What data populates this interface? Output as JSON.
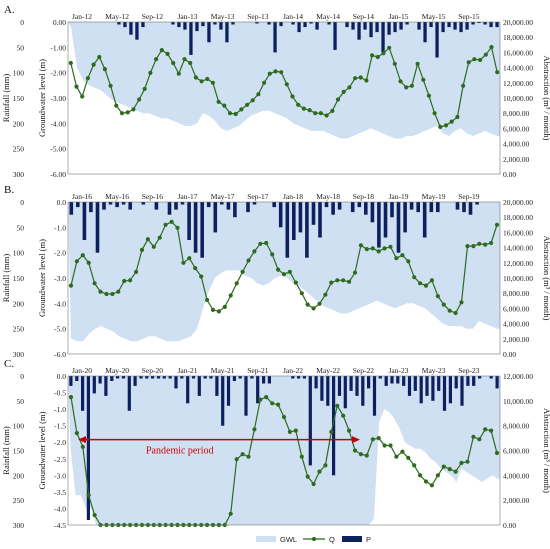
{
  "chart_data": [
    {
      "panel_label": "A.",
      "type": "bar+line+area",
      "x_ticks": [
        "Jan-12",
        "May-12",
        "Sep-12",
        "Jan-13",
        "May-13",
        "Sep-13",
        "Jan-14",
        "May-14",
        "Sep-14",
        "Jan-15",
        "May-15",
        "Sep-15"
      ],
      "ylabel_rainfall": "Rainfall (mm)",
      "ylabel_gwl": "Groundwater level (m)",
      "ylabel_abstraction": "Abstraction (m³ / month)",
      "rainfall_ticks": [
        "0",
        "50",
        "100",
        "150",
        "200",
        "250",
        "300"
      ],
      "gwl_ticks": [
        "0.00",
        "-1.00",
        "-2.00",
        "-3.00",
        "-4.00",
        "-5.00",
        "-6.00"
      ],
      "abstraction_ticks": [
        "0.00",
        "2,000.00",
        "4,000.00",
        "6,000.00",
        "8,000.00",
        "10,000.00",
        "12,000.00",
        "14,000.00",
        "16,000.00",
        "18,000.00",
        "20,000.00"
      ],
      "rainfall_max": 300,
      "gwl_min": -6,
      "abstraction_max": 20000,
      "P": [
        0,
        0,
        0,
        0,
        0,
        0,
        0,
        0,
        5,
        10,
        25,
        35,
        10,
        0,
        0,
        0,
        0,
        5,
        10,
        15,
        65,
        18,
        8,
        40,
        5,
        15,
        40,
        5,
        0,
        0,
        0,
        3,
        0,
        5,
        60,
        8,
        0,
        5,
        20,
        10,
        3,
        15,
        0,
        5,
        55,
        0,
        10,
        15,
        35,
        15,
        30,
        20,
        60,
        25,
        20,
        15,
        5,
        0,
        15,
        40,
        10,
        70,
        20,
        10,
        15,
        20,
        15,
        5,
        2,
        5,
        10,
        10
      ],
      "GWL": [
        -0.2,
        -1.8,
        -2.3,
        -2.5,
        -2.6,
        -2.7,
        -2.9,
        -3.1,
        -3.2,
        -3.3,
        -3.4,
        -3.5,
        -3.6,
        -3.6,
        -3.7,
        -3.8,
        -3.8,
        -3.9,
        -4.0,
        -4.1,
        -4.1,
        -4.0,
        -3.6,
        -3.7,
        -3.9,
        -4.2,
        -4.3,
        -4.2,
        -4.1,
        -3.9,
        -3.7,
        -3.6,
        -3.5,
        -3.5,
        -3.6,
        -3.7,
        -3.8,
        -4.0,
        -4.1,
        -4.2,
        -4.3,
        -4.3,
        -4.3,
        -4.4,
        -4.5,
        -4.6,
        -4.6,
        -4.5,
        -4.4,
        -4.3,
        -4.2,
        -4.3,
        -4.4,
        -4.5,
        -4.6,
        -4.6,
        -4.5,
        -4.5,
        -4.4,
        -4.3,
        -4.2,
        -4.1,
        -4.4,
        -4.5,
        -4.3,
        -4.2,
        -4.4,
        -4.5,
        -4.4,
        -4.3,
        -4.4,
        -4.5
      ],
      "Q": [
        14600,
        11500,
        10200,
        12600,
        14400,
        15400,
        13800,
        11600,
        9000,
        8000,
        8100,
        8500,
        9800,
        11200,
        13300,
        15100,
        16300,
        15800,
        14600,
        13200,
        15100,
        14600,
        12700,
        12200,
        12500,
        12000,
        9500,
        9000,
        8000,
        7900,
        8500,
        9100,
        9700,
        10500,
        12000,
        13200,
        13500,
        13400,
        11800,
        10200,
        9100,
        8600,
        8400,
        8000,
        8000,
        7700,
        8300,
        9800,
        10800,
        11400,
        12600,
        12700,
        12300,
        15600,
        15400,
        15900,
        16600,
        14500,
        12200,
        11400,
        11600,
        14500,
        12400,
        10300,
        8000,
        6200,
        6400,
        6900,
        7500,
        11600,
        14700,
        15100,
        15000,
        15700,
        16700,
        13400
      ]
    },
    {
      "panel_label": "B.",
      "type": "bar+line+area",
      "x_ticks": [
        "Jan-16",
        "May-16",
        "Sep-16",
        "Jan-17",
        "May-17",
        "Sep-17",
        "Jan-18",
        "May-18",
        "Sep-18",
        "Jan-19",
        "May-19",
        "Sep-19"
      ],
      "ylabel_rainfall": "Rainfall (mm)",
      "ylabel_gwl": "Groundwater level (m)",
      "ylabel_abstraction": "Abstraction (m³ / month)",
      "rainfall_ticks": [
        "0",
        "50",
        "100",
        "150",
        "200",
        "250",
        "300"
      ],
      "gwl_ticks": [
        "0.0",
        "-1.0",
        "-2.0",
        "-3.0",
        "-4.0",
        "-5.0",
        "-6.0"
      ],
      "abstraction_ticks": [
        "0.00",
        "2,000.00",
        "4,000.00",
        "6,000.00",
        "8,000.00",
        "10,000.00",
        "12,000.00",
        "14,000.00",
        "16,000.00",
        "18,000.00",
        "20,000.00"
      ],
      "rainfall_max": 300,
      "gwl_min": -6,
      "abstraction_max": 20000,
      "P": [
        25,
        10,
        75,
        20,
        100,
        15,
        5,
        10,
        5,
        15,
        0,
        5,
        0,
        15,
        0,
        25,
        15,
        5,
        75,
        100,
        110,
        10,
        60,
        5,
        15,
        30,
        0,
        20,
        5,
        0,
        0,
        10,
        50,
        110,
        75,
        60,
        110,
        45,
        70,
        10,
        25,
        15,
        0,
        20,
        10,
        25,
        40,
        90,
        70,
        30,
        100,
        60,
        15,
        20,
        70,
        20,
        20,
        0,
        0,
        15,
        20,
        25,
        5,
        0,
        0,
        0
      ],
      "GWL": [
        -5.4,
        -5.5,
        -5.5,
        -5.2,
        -5.0,
        -4.9,
        -5.0,
        -5.1,
        -5.3,
        -5.4,
        -5.5,
        -5.5,
        -5.4,
        -5.3,
        -5.3,
        -5.4,
        -5.5,
        -5.5,
        -5.5,
        -5.4,
        -5.3,
        -5.0,
        -4.2,
        -3.5,
        -3.0,
        -2.8,
        -2.7,
        -2.7,
        -2.7,
        -2.9,
        -3.0,
        -3.2,
        -3.3,
        -3.2,
        -3.0,
        -2.9,
        -3.0,
        -3.2,
        -3.3,
        -3.5,
        -3.7,
        -3.9,
        -4.1,
        -4.2,
        -4.3,
        -4.4,
        -4.4,
        -4.3,
        -4.2,
        -4.1,
        -4.0,
        -3.9,
        -4.0,
        -4.1,
        -4.2,
        -4.1,
        -4.0,
        -4.0,
        -4.1,
        -4.2,
        -4.4,
        -4.6,
        -4.8,
        -4.9,
        -4.9,
        -4.9,
        -5.0,
        -5.0,
        -4.7,
        -4.8,
        -4.9,
        -5.0
      ],
      "Q": [
        9000,
        12200,
        13000,
        12000,
        9300,
        8200,
        7900,
        7900,
        8200,
        9600,
        9700,
        10800,
        13700,
        15100,
        14100,
        15300,
        17000,
        17400,
        16600,
        12000,
        12600,
        11300,
        10200,
        7100,
        5800,
        5600,
        6200,
        7700,
        9300,
        10800,
        12300,
        13500,
        14500,
        14600,
        13100,
        11100,
        10500,
        10800,
        9400,
        8000,
        6500,
        6000,
        6600,
        7800,
        9400,
        9700,
        9700,
        9500,
        10700,
        14300,
        13800,
        13900,
        13500,
        13900,
        14100,
        12600,
        13000,
        12200,
        10100,
        9300,
        9000,
        9700,
        7600,
        6500,
        5700,
        5400,
        6800,
        14200,
        14200,
        14500,
        14400,
        14600,
        17000
      ]
    },
    {
      "panel_label": "C.",
      "type": "bar+line+area",
      "annotation": "Pandemic period",
      "x_ticks": [
        "Jan-20",
        "May-20",
        "Sep-20",
        "Jan-21",
        "May-21",
        "Sep-21",
        "Jan-22",
        "May-22",
        "Sep-22",
        "Jan-23",
        "May-23",
        "Sep-23"
      ],
      "ylabel_rainfall": "Rainfall (mm)",
      "ylabel_gwl": "Groundwater level (m)",
      "ylabel_abstraction": "Abstraction (m³ / month)",
      "rainfall_ticks": [
        "0",
        "50",
        "100",
        "150",
        "200",
        "250",
        "300"
      ],
      "gwl_ticks": [
        "0.0",
        "-0.5",
        "-1.0",
        "-1.5",
        "-2.0",
        "-2.5",
        "-3.0",
        "-3.5",
        "-4.0",
        "-4.5"
      ],
      "abstraction_ticks": [
        "0.00",
        "2,000.00",
        "4,000.00",
        "6,000.00",
        "8,000.00",
        "10,000.00",
        "12,000.00"
      ],
      "rainfall_max": 300,
      "gwl_min": -4.5,
      "abstraction_max": 12000,
      "P": [
        20,
        10,
        70,
        290,
        35,
        15,
        40,
        10,
        5,
        5,
        70,
        20,
        5,
        5,
        5,
        5,
        5,
        5,
        25,
        5,
        55,
        5,
        40,
        5,
        5,
        40,
        100,
        60,
        10,
        5,
        80,
        5,
        55,
        15,
        15,
        0,
        0,
        0,
        5,
        5,
        5,
        180,
        25,
        50,
        60,
        200,
        40,
        65,
        30,
        40,
        60,
        25,
        80,
        5,
        20,
        15,
        15,
        20,
        40,
        30,
        55,
        40,
        50,
        30,
        70,
        55,
        25,
        60,
        20,
        20,
        5,
        0,
        5,
        25
      ],
      "GWL": [
        -2.2,
        -3.6,
        -3.6,
        -4.0,
        -4.0,
        -4.5,
        -4.5,
        -4.5,
        -4.5,
        -4.5,
        -4.5,
        -4.5,
        -4.5,
        -4.5,
        -4.5,
        -4.5,
        -4.5,
        -4.5,
        -4.5,
        -4.5,
        -4.5,
        -4.5,
        -4.5,
        -4.5,
        -4.5,
        -4.5,
        -4.5,
        -4.5,
        -4.5,
        -4.5,
        -4.5,
        -4.5,
        -4.5,
        -4.5,
        -4.5,
        -4.5,
        -4.5,
        -4.5,
        -4.5,
        -4.5,
        -4.5,
        -4.5,
        -4.5,
        -4.5,
        -4.5,
        -4.5,
        -4.5,
        -4.5,
        -4.5,
        -4.5,
        -4.5,
        -4.5,
        -4.5,
        -4.5,
        -4.5,
        -4.5,
        -4.5,
        -4.5,
        -4.5,
        -4.3,
        -1.4,
        -1.0,
        -1.1,
        -1.3,
        -1.6,
        -2.0,
        -2.1,
        -2.2,
        -2.2,
        -2.3,
        -2.5,
        -2.6,
        -2.8,
        -2.9,
        -3.0,
        -3.2,
        -2.8,
        -2.9,
        -3.0,
        -3.1,
        -3.2,
        -3.1,
        -3.0,
        -3.1
      ],
      "Q": [
        10300,
        7400,
        6300,
        2400,
        800,
        0,
        0,
        0,
        0,
        0,
        0,
        0,
        0,
        0,
        0,
        0,
        0,
        0,
        0,
        0,
        0,
        0,
        0,
        0,
        0,
        0,
        0,
        900,
        5300,
        5700,
        5500,
        7700,
        10100,
        10300,
        9800,
        9700,
        8700,
        7500,
        7600,
        5500,
        3900,
        3300,
        4300,
        4800,
        7500,
        9600,
        8800,
        7600,
        6000,
        5700,
        5600,
        6900,
        7000,
        6400,
        6400,
        5500,
        5900,
        5400,
        4800,
        4000,
        3500,
        3200,
        4000,
        4700,
        4500,
        4300,
        5000,
        5100,
        7100,
        6900,
        7700,
        7600,
        5800
      ]
    }
  ],
  "legend": [
    {
      "label": "GWL",
      "color": "#cfe0f3"
    },
    {
      "label": "Q",
      "color": "#2e6b1e"
    },
    {
      "label": "P",
      "color": "#0d1f5c"
    }
  ],
  "colors": {
    "gwl_fill": "#cfe0f3",
    "q_line": "#2e6b1e",
    "p_bar": "#0d1f5c",
    "pandemic_arrow": "#c00000"
  }
}
